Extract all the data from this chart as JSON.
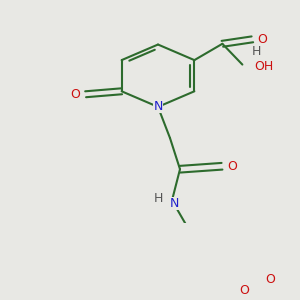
{
  "bg_color": "#e8e8e4",
  "bond_color": "#2d6b2d",
  "n_color": "#2020cc",
  "o_color": "#cc1010",
  "h_color": "#555555",
  "line_width": 1.5,
  "font_size": 9.0,
  "figsize": [
    3.0,
    3.0
  ],
  "dpi": 100,
  "xlim": [
    0,
    300
  ],
  "ylim": [
    0,
    300
  ]
}
